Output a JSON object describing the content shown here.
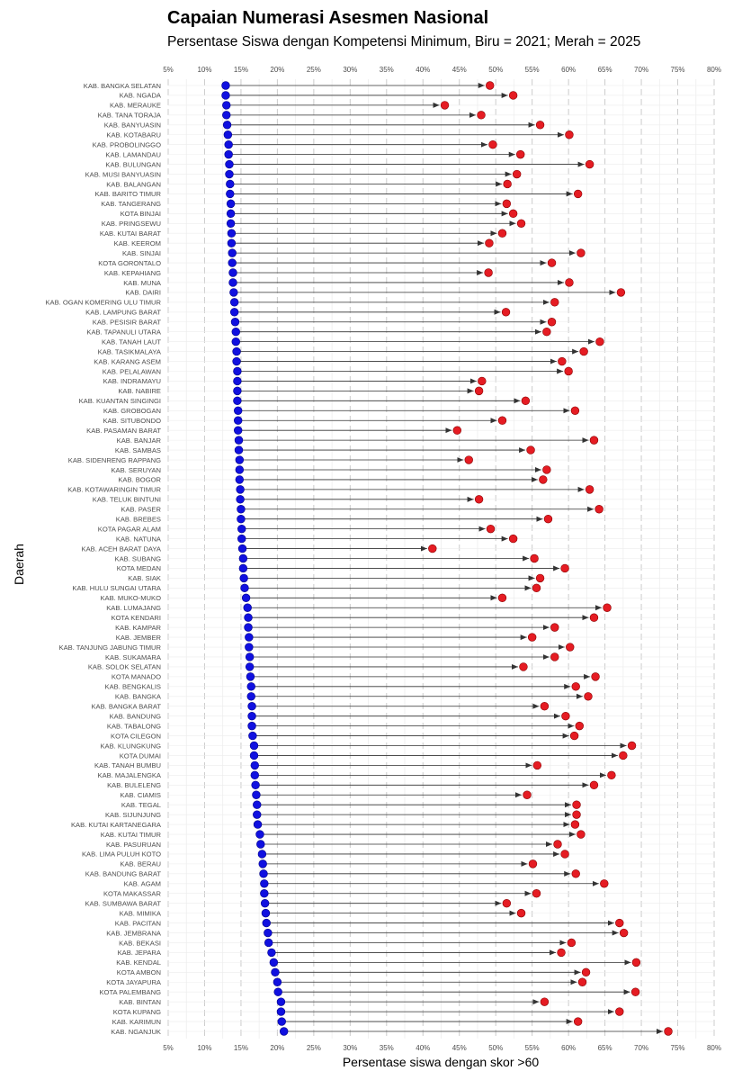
{
  "title": "Capaian Numerasi Asesmen Nasional",
  "subtitle": "Persentase Siswa dengan Kompetensi Minimum, Biru = 2021; Merah = 2025",
  "chart_data": {
    "type": "dumbbell",
    "xlabel": "Persentase siswa dengan skor >60",
    "ylabel": "Daerah",
    "xlim": [
      5,
      80
    ],
    "xticks": [
      "5%",
      "10%",
      "15%",
      "20%",
      "25%",
      "30%",
      "35%",
      "40%",
      "45%",
      "50%",
      "55%",
      "60%",
      "65%",
      "70%",
      "75%",
      "80%"
    ],
    "grid": true,
    "colors": {
      "year_2021": "#1010e0",
      "year_2025": "#e51c23",
      "arrow": "#333333",
      "grid": "#d0d0d0"
    },
    "series": [
      {
        "name": "2021",
        "values_key": "v2021"
      },
      {
        "name": "2025",
        "values_key": "v2025"
      }
    ],
    "categories": [
      "KAB. BANGKA SELATAN",
      "KAB. NGADA",
      "KAB. MERAUKE",
      "KAB. TANA TORAJA",
      "KAB. BANYUASIN",
      "KAB. KOTABARU",
      "KAB. PROBOLINGGO",
      "KAB. LAMANDAU",
      "KAB. BULUNGAN",
      "KAB. MUSI BANYUASIN",
      "KAB. BALANGAN",
      "KAB. BARITO TIMUR",
      "KAB. TANGERANG",
      "KOTA BINJAI",
      "KAB. PRINGSEWU",
      "KAB. KUTAI BARAT",
      "KAB. KEEROM",
      "KAB. SINJAI",
      "KOTA GORONTALO",
      "KAB. KEPAHIANG",
      "KAB. MUNA",
      "KAB. DAIRI",
      "KAB. OGAN KOMERING ULU TIMUR",
      "KAB. LAMPUNG BARAT",
      "KAB. PESISIR BARAT",
      "KAB. TAPANULI UTARA",
      "KAB. TANAH LAUT",
      "KAB. TASIKMALAYA",
      "KAB. KARANG ASEM",
      "KAB. PELALAWAN",
      "KAB. INDRAMAYU",
      "KAB. NABIRE",
      "KAB. KUANTAN SINGINGI",
      "KAB. GROBOGAN",
      "KAB. SITUBONDO",
      "KAB. PASAMAN BARAT",
      "KAB. BANJAR",
      "KAB. SAMBAS",
      "KAB. SIDENRENG RAPPANG",
      "KAB. SERUYAN",
      "KAB. BOGOR",
      "KAB. KOTAWARINGIN TIMUR",
      "KAB. TELUK BINTUNI",
      "KAB. PASER",
      "KAB. BREBES",
      "KOTA PAGAR ALAM",
      "KAB. NATUNA",
      "KAB. ACEH BARAT DAYA",
      "KAB. SUBANG",
      "KOTA MEDAN",
      "KAB. SIAK",
      "KAB. HULU SUNGAI UTARA",
      "KAB. MUKO-MUKO",
      "KAB. LUMAJANG",
      "KOTA KENDARI",
      "KAB. KAMPAR",
      "KAB. JEMBER",
      "KAB. TANJUNG JABUNG TIMUR",
      "KAB. SUKAMARA",
      "KAB. SOLOK SELATAN",
      "KOTA MANADO",
      "KAB. BENGKALIS",
      "KAB. BANGKA",
      "KAB. BANGKA BARAT",
      "KAB. BANDUNG",
      "KAB. TABALONG",
      "KOTA CILEGON",
      "KAB. KLUNGKUNG",
      "KOTA DUMAI",
      "KAB. TANAH BUMBU",
      "KAB. MAJALENGKA",
      "KAB. BULELENG",
      "KAB. CIAMIS",
      "KAB. TEGAL",
      "KAB. SIJUNJUNG",
      "KAB. KUTAI KARTANEGARA",
      "KAB. KUTAI TIMUR",
      "KAB. PASURUAN",
      "KAB. LIMA PULUH KOTO",
      "KAB. BERAU",
      "KAB. BANDUNG BARAT",
      "KAB. AGAM",
      "KOTA MAKASSAR",
      "KAB. SUMBAWA BARAT",
      "KAB. MIMIKA",
      "KAB. PACITAN",
      "KAB. JEMBRANA",
      "KAB. BEKASI",
      "KAB. JEPARA",
      "KAB. KENDAL",
      "KOTA AMBON",
      "KOTA JAYAPURA",
      "KOTA PALEMBANG",
      "KAB. BINTAN",
      "KOTA KUPANG",
      "KAB. KARIMUN",
      "KAB. NGANJUK"
    ],
    "v2021": [
      12.9,
      12.9,
      13.0,
      13.0,
      13.1,
      13.2,
      13.3,
      13.3,
      13.4,
      13.4,
      13.5,
      13.5,
      13.6,
      13.6,
      13.6,
      13.7,
      13.7,
      13.8,
      13.8,
      13.9,
      13.9,
      14.0,
      14.1,
      14.1,
      14.2,
      14.3,
      14.3,
      14.4,
      14.4,
      14.5,
      14.5,
      14.5,
      14.5,
      14.6,
      14.6,
      14.6,
      14.7,
      14.7,
      14.8,
      14.8,
      14.8,
      14.9,
      14.9,
      15.0,
      15.0,
      15.1,
      15.1,
      15.2,
      15.3,
      15.3,
      15.4,
      15.5,
      15.7,
      15.9,
      16.0,
      16.0,
      16.1,
      16.1,
      16.2,
      16.2,
      16.3,
      16.4,
      16.4,
      16.5,
      16.5,
      16.5,
      16.6,
      16.8,
      16.8,
      16.9,
      16.9,
      17.0,
      17.1,
      17.2,
      17.2,
      17.3,
      17.6,
      17.7,
      17.9,
      18.0,
      18.1,
      18.2,
      18.2,
      18.3,
      18.4,
      18.5,
      18.7,
      18.8,
      19.2,
      19.5,
      19.7,
      20.0,
      20.1,
      20.5,
      20.5,
      20.6,
      20.9
    ],
    "v2025": [
      49.2,
      52.4,
      43.0,
      48.0,
      56.1,
      60.1,
      49.6,
      53.4,
      62.9,
      52.9,
      51.6,
      61.3,
      51.5,
      52.4,
      53.5,
      50.9,
      49.1,
      61.7,
      57.7,
      49.0,
      60.1,
      67.2,
      58.1,
      51.4,
      57.7,
      57.0,
      64.3,
      62.1,
      59.1,
      60.0,
      48.1,
      47.7,
      54.1,
      60.9,
      50.9,
      44.7,
      63.5,
      54.8,
      46.3,
      57.0,
      56.5,
      62.9,
      47.7,
      64.2,
      57.2,
      49.3,
      52.4,
      41.3,
      55.3,
      59.5,
      56.1,
      55.6,
      50.9,
      65.3,
      63.5,
      58.1,
      55.0,
      60.2,
      58.1,
      53.8,
      63.7,
      61.0,
      62.7,
      56.7,
      59.6,
      61.5,
      60.8,
      68.7,
      67.5,
      55.7,
      65.9,
      63.5,
      54.3,
      61.1,
      61.1,
      60.9,
      61.7,
      58.5,
      59.5,
      55.1,
      61.0,
      64.9,
      55.6,
      51.5,
      53.5,
      67.0,
      67.6,
      60.4,
      59.0,
      69.3,
      62.4,
      61.9,
      69.2,
      56.7,
      67.0,
      61.3,
      73.7
    ]
  }
}
